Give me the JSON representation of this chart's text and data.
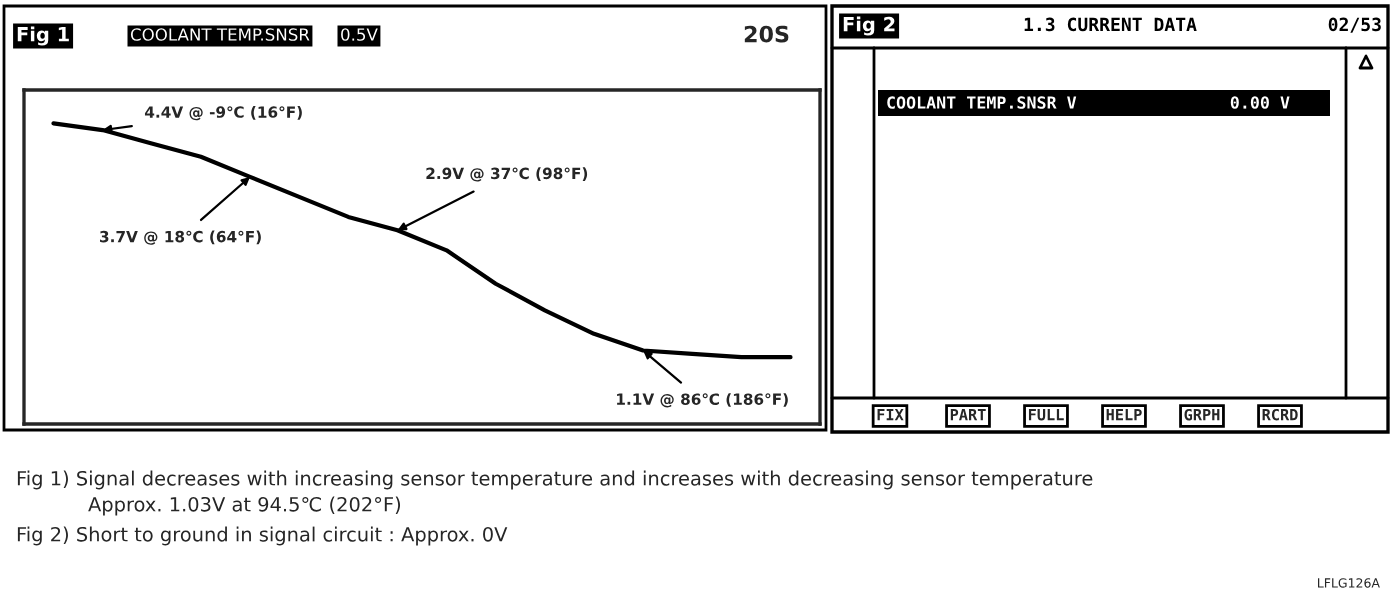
{
  "chart_data": [
    {
      "type": "line",
      "title": "Fig 1",
      "categories": [
        null,
        null,
        null,
        null,
        null,
        null,
        null,
        null,
        null,
        null,
        null,
        null,
        null,
        null,
        null,
        null
      ],
      "values": [
        4.5,
        4.4,
        4.2,
        4.0,
        3.7,
        3.4,
        3.1,
        2.9,
        2.6,
        2.1,
        1.7,
        1.35,
        1.1,
        1.05,
        1.0,
        1.0
      ],
      "value_labels": [
        null,
        "4.4V @ -9℃ (16°F)",
        null,
        null,
        "3.7V @ 18℃ (64°F)",
        null,
        null,
        "2.9V @ 37℃ (98°F)",
        null,
        null,
        null,
        null,
        "1.1V @ 86℃ (186°F)",
        null,
        null,
        null
      ],
      "color": "#000000",
      "ylim": [
        0,
        5
      ],
      "tick_labels": false,
      "annotations": [
        "COOLANT TEMP.SNSR",
        "0.5V",
        "20S",
        "Fig 1) Signal decreases with increasing sensor temperature and increases with decreasing sensor temperature",
        "Approx. 1.03V at 94.5℃ (202°F)",
        "Fig 2) Short to ground in signal circuit : Approx. 0V",
        "LFLG126A"
      ]
    },
    {
      "type": "other",
      "title": "Fig 2",
      "annotations": [
        "1.3 CURRENT DATA",
        "02/53",
        "COOLANT TEMP.SNSR V",
        "0.00 V",
        "FIX",
        "PART",
        "FULL",
        "HELP",
        "GRPH",
        "RCRD"
      ]
    }
  ]
}
